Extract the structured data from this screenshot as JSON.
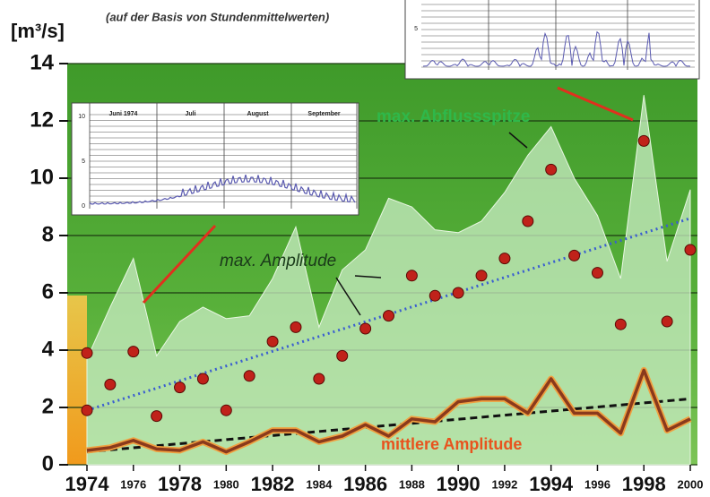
{
  "chart_data": {
    "type": "area",
    "ylabel": "[m³/s]",
    "subtitle": "(auf der Basis von Stundenmittelwerten)",
    "x": [
      1974,
      1975,
      1976,
      1977,
      1978,
      1979,
      1980,
      1981,
      1982,
      1983,
      1984,
      1985,
      1986,
      1987,
      1988,
      1989,
      1990,
      1991,
      1992,
      1993,
      1994,
      1995,
      1996,
      1997,
      1998,
      1999,
      2000
    ],
    "xlim": [
      1974,
      2000
    ],
    "xticks": [
      1974,
      1976,
      1978,
      1980,
      1982,
      1984,
      1986,
      1988,
      1990,
      1992,
      1994,
      1996,
      1998,
      2000
    ],
    "ylim": [
      0,
      14
    ],
    "yticks": [
      0,
      2,
      4,
      6,
      8,
      10,
      12,
      14
    ],
    "grid": true,
    "series": [
      {
        "name": "max. Abflussspitze",
        "type": "area",
        "color": "#c9ecc4",
        "values": [
          3.7,
          5.5,
          7.2,
          3.8,
          5.0,
          5.5,
          5.1,
          5.2,
          6.5,
          8.3,
          4.8,
          6.8,
          7.5,
          9.3,
          9.0,
          8.2,
          8.1,
          8.5,
          9.5,
          10.8,
          11.8,
          10.0,
          8.7,
          6.5,
          12.9,
          7.1,
          9.6
        ]
      },
      {
        "name": "max. Amplitude",
        "type": "scatter",
        "color": "#c0221a",
        "x": [
          1974,
          1974,
          1975,
          1976,
          1977,
          1978,
          1979,
          1980,
          1981,
          1982,
          1983,
          1984,
          1985,
          1986,
          1987,
          1988,
          1989,
          1990,
          1991,
          1992,
          1993,
          1994,
          1995,
          1996,
          1997,
          1998,
          1999,
          2000
        ],
        "values": [
          1.9,
          3.9,
          2.8,
          3.95,
          1.7,
          2.7,
          3.0,
          1.9,
          3.1,
          4.3,
          4.8,
          3.0,
          3.8,
          4.75,
          5.2,
          6.6,
          5.9,
          6.0,
          6.6,
          7.2,
          8.5,
          10.3,
          7.3,
          6.7,
          4.9,
          11.3,
          5.0,
          7.5
        ]
      },
      {
        "name": "mittlere Amplitude",
        "type": "line",
        "color": "#8a3a1c",
        "values": [
          0.5,
          0.6,
          0.85,
          0.55,
          0.5,
          0.8,
          0.45,
          0.8,
          1.2,
          1.2,
          0.8,
          1.0,
          1.4,
          1.0,
          1.6,
          1.5,
          2.2,
          2.3,
          2.3,
          1.8,
          3.0,
          1.8,
          1.8,
          1.1,
          3.3,
          1.2,
          1.6
        ]
      }
    ],
    "trends": [
      {
        "color": "#3a5ed0",
        "x": [
          1974,
          2000
        ],
        "values": [
          1.9,
          8.6
        ]
      },
      {
        "color": "#111111",
        "x": [
          1974,
          2000
        ],
        "values": [
          0.45,
          2.3
        ]
      }
    ],
    "insets": [
      {
        "months": [
          "Juni 1974",
          "Juli",
          "August",
          "September"
        ],
        "yticks": [
          10,
          5,
          0
        ]
      },
      {
        "yticks": [
          5
        ]
      }
    ]
  }
}
